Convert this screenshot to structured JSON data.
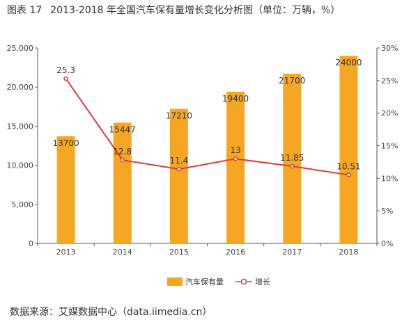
{
  "title": {
    "fig_label": "图表 17",
    "text": "2013-2018 年全国汽车保有量增长变化分析图（单位：万辆，%）"
  },
  "source": "数据来源：艾媒数据中心（data.iimedia.cn）",
  "chart_data": {
    "type": "bar",
    "categories": [
      "2013",
      "2014",
      "2015",
      "2016",
      "2017",
      "2018"
    ],
    "series": [
      {
        "name": "汽车保有量",
        "type": "bar",
        "axis": "left",
        "values": [
          13700,
          15447,
          17210,
          19400,
          21700,
          24000
        ],
        "labels": [
          "13700",
          "15447",
          "17210",
          "19400",
          "21700",
          "24000"
        ],
        "color": "#F5A623"
      },
      {
        "name": "增长",
        "type": "line",
        "axis": "right",
        "values": [
          25.3,
          12.8,
          11.4,
          13,
          11.85,
          10.51
        ],
        "labels": [
          "25.3",
          "12.8",
          "11.4",
          "13",
          "11.85",
          "10.51"
        ],
        "color": "#E03A3A"
      }
    ],
    "y_left": {
      "ylim": [
        0,
        25000
      ],
      "ticks": [
        "0",
        "5,000",
        "10,000",
        "15,000",
        "20,000",
        "25,000"
      ]
    },
    "y_right": {
      "ylim": [
        0,
        30
      ],
      "ticks": [
        "0%",
        "5%",
        "10%",
        "15%",
        "20%",
        "25%",
        "30%"
      ]
    },
    "grid": false,
    "legend": "bottom-center"
  }
}
